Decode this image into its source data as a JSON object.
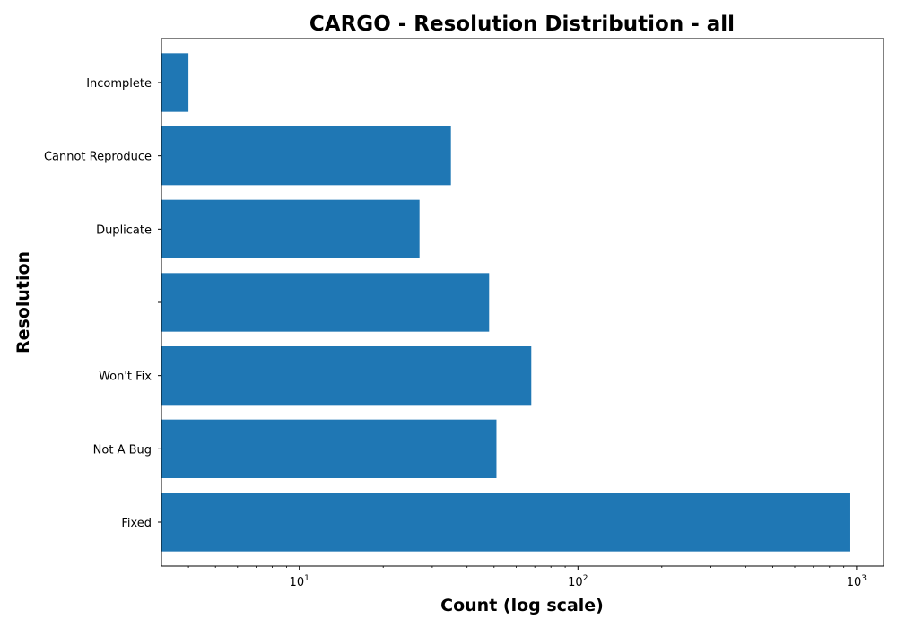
{
  "chart_data": {
    "type": "bar",
    "orientation": "horizontal",
    "title": "CARGO - Resolution Distribution - all",
    "xlabel": "Count (log scale)",
    "ylabel": "Resolution",
    "x_scale": "log",
    "xlim": [
      3.2,
      1250
    ],
    "x_ticks": [
      {
        "value": 10,
        "base": "10",
        "exp": "1"
      },
      {
        "value": 100,
        "base": "10",
        "exp": "2"
      },
      {
        "value": 1000,
        "base": "10",
        "exp": "3"
      }
    ],
    "categories": [
      "Fixed",
      "Not A Bug",
      "Won't Fix",
      "",
      "Duplicate",
      "Cannot Reproduce",
      "Incomplete"
    ],
    "values": [
      950,
      51,
      68,
      48,
      27,
      35,
      4
    ],
    "bar_color": "#1f77b4",
    "grid": false,
    "legend": "none"
  }
}
